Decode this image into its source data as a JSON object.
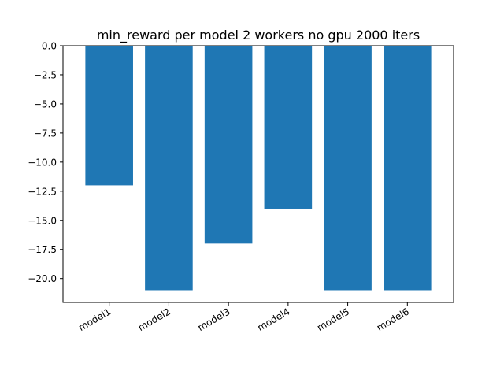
{
  "chart_data": {
    "type": "bar",
    "title": "min_reward per model 2 workers no gpu 2000 iters",
    "xlabel": "",
    "ylabel": "",
    "categories": [
      "model1",
      "model2",
      "model3",
      "model4",
      "model5",
      "model6"
    ],
    "values": [
      -12,
      -21,
      -17,
      -14,
      -21,
      -21
    ],
    "ylim": [
      -22.05,
      0
    ],
    "yticks": [
      0,
      -2.5,
      -5,
      -7.5,
      -10,
      -12.5,
      -15,
      -17.5,
      -20
    ],
    "ytick_labels": [
      "0.0",
      "−2.5",
      "−5.0",
      "−7.5",
      "−10.0",
      "−12.5",
      "−15.0",
      "−17.5",
      "−20.0"
    ],
    "grid": false,
    "legend": "none",
    "xtick_rotation": "30 degrees",
    "bar_color": "#1f77b4"
  }
}
